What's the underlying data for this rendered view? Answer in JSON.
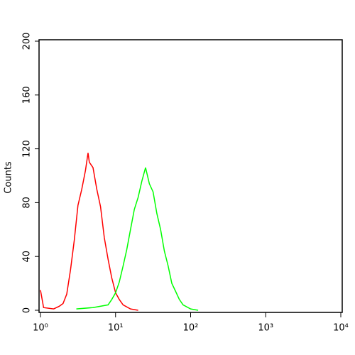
{
  "chart_data": {
    "type": "line",
    "ylabel": "Counts",
    "xscale": "log",
    "xlim": [
      1,
      10000
    ],
    "ylim": [
      0,
      200
    ],
    "xticks": [
      {
        "value": 1,
        "label": "10⁰"
      },
      {
        "value": 10,
        "label": "10¹"
      },
      {
        "value": 100,
        "label": "10²"
      },
      {
        "value": 1000,
        "label": "10³"
      },
      {
        "value": 10000,
        "label": "10⁴"
      }
    ],
    "yticks": [
      0,
      40,
      80,
      120,
      160,
      200
    ],
    "series": [
      {
        "color": "#ff0000",
        "x": [
          1,
          1.1,
          1.5,
          1.78,
          2.0,
          2.24,
          2.51,
          2.82,
          3.16,
          3.55,
          3.98,
          4.3,
          4.47,
          5.01,
          5.62,
          6.31,
          7.08,
          7.94,
          8.91,
          10,
          11.2,
          12.6,
          15.8,
          20
        ],
        "values": [
          15,
          2,
          1,
          3,
          5,
          12,
          30,
          52,
          78,
          90,
          104,
          117,
          110,
          106,
          90,
          77,
          54,
          38,
          24,
          13,
          8,
          4,
          1,
          0
        ]
      },
      {
        "color": "#00ff00",
        "x": [
          3,
          5,
          7.94,
          8.91,
          10,
          11.2,
          12.6,
          14.1,
          15.8,
          17.8,
          20,
          22.4,
          25.1,
          28.2,
          31.6,
          35.5,
          39.8,
          44.7,
          50.1,
          56.2,
          63.1,
          70.8,
          79.4,
          100,
          126
        ],
        "values": [
          1,
          2,
          4,
          8,
          13,
          21,
          33,
          45,
          60,
          75,
          84,
          96,
          106,
          94,
          88,
          72,
          60,
          44,
          33,
          20,
          14,
          8,
          4,
          1,
          0
        ]
      }
    ]
  }
}
